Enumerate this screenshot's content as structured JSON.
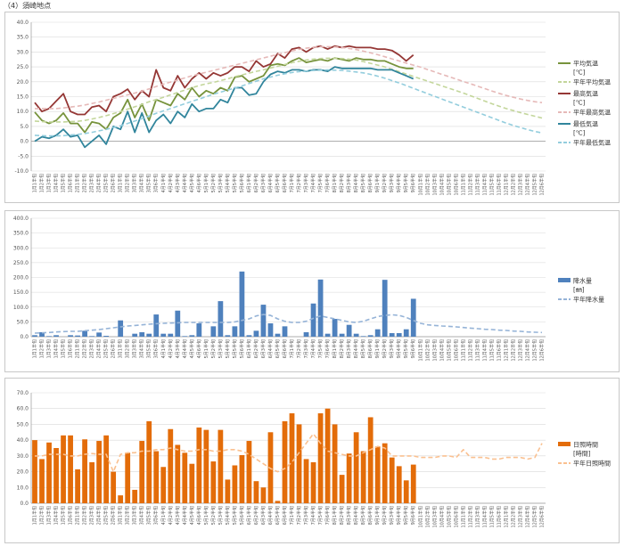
{
  "page": {
    "title": "（4）須崎地点"
  },
  "x_labels": [
    "1月1半旬",
    "1月2半旬",
    "1月3半旬",
    "1月4半旬",
    "1月5半旬",
    "1月6半旬",
    "2月1半旬",
    "2月2半旬",
    "2月3半旬",
    "2月4半旬",
    "2月5半旬",
    "2月6半旬",
    "3月1半旬",
    "3月2半旬",
    "3月3半旬",
    "3月4半旬",
    "3月5半旬",
    "3月6半旬",
    "4月1半旬",
    "4月2半旬",
    "4月3半旬",
    "4月4半旬",
    "4月5半旬",
    "4月6半旬",
    "5月1半旬",
    "5月2半旬",
    "5月3半旬",
    "5月4半旬",
    "5月5半旬",
    "5月6半旬",
    "6月1半旬",
    "6月2半旬",
    "6月3半旬",
    "6月4半旬",
    "6月5半旬",
    "6月6半旬",
    "7月1半旬",
    "7月2半旬",
    "7月3半旬",
    "7月4半旬",
    "7月5半旬",
    "7月6半旬",
    "8月1半旬",
    "8月2半旬",
    "8月3半旬",
    "8月4半旬",
    "8月5半旬",
    "8月6半旬",
    "9月1半旬",
    "9月2半旬",
    "9月3半旬",
    "9月4半旬",
    "9月5半旬",
    "9月6半旬",
    "10月1半旬",
    "10月2半旬",
    "10月3半旬",
    "10月4半旬",
    "10月5半旬",
    "10月6半旬",
    "11月1半旬",
    "11月2半旬",
    "11月3半旬",
    "11月4半旬",
    "11月5半旬",
    "11月6半旬",
    "12月1半旬",
    "12月2半旬",
    "12月3半旬",
    "12月4半旬",
    "12月5半旬",
    "12月6半旬"
  ],
  "colors": {
    "avg": "#77933c",
    "avg_normal": "#c3d69b",
    "max": "#953735",
    "max_normal": "#e6b9b8",
    "min": "#31859c",
    "min_normal": "#93cddd",
    "rain": "#4f81bd",
    "rain_normal": "#95b3d7",
    "sun": "#e36c09",
    "sun_normal": "#fac090",
    "grid": "#d9d9d9"
  },
  "chart_data": [
    {
      "type": "line",
      "ylim": [
        -10,
        40
      ],
      "yticks": [
        "-10.0",
        "-5.0",
        "0.0",
        "5.0",
        "10.0",
        "15.0",
        "20.0",
        "25.0",
        "30.0",
        "35.0",
        "40.0"
      ],
      "legend_position": "right",
      "series": [
        {
          "name": "平均気温",
          "unit": "[℃]",
          "style": "solid",
          "color_key": "avg",
          "values": [
            9.8,
            7,
            6,
            7,
            9.5,
            6,
            6,
            3,
            6.5,
            6,
            4,
            8,
            9.5,
            14,
            8,
            12.5,
            7,
            14,
            13,
            12,
            16,
            14,
            18,
            15,
            17,
            16,
            18,
            17,
            21.5,
            22,
            20,
            21,
            22,
            25.5,
            26,
            25.5,
            27,
            28,
            26.5,
            27,
            27.5,
            27,
            28,
            27.5,
            27,
            28,
            27.5,
            27.5,
            27,
            27,
            26,
            25,
            24.5,
            24.5
          ]
        },
        {
          "name": "平年平均気温",
          "style": "dashed",
          "color_key": "avg_normal",
          "values": [
            6.8,
            6.6,
            6.5,
            6.5,
            6.5,
            6.6,
            6.7,
            7,
            7.5,
            8,
            8.6,
            9.3,
            10,
            10.8,
            11.6,
            12.4,
            13.3,
            14,
            14.8,
            15.6,
            16.4,
            17.2,
            18,
            18.7,
            19.3,
            19.8,
            20.4,
            21,
            21.7,
            22.3,
            22.9,
            23.5,
            24,
            24.6,
            25.2,
            25.8,
            26.4,
            26.9,
            27.3,
            27.6,
            27.8,
            27.9,
            27.9,
            27.8,
            27.6,
            27.3,
            26.8,
            26.2,
            25.6,
            25,
            24.2,
            23.4,
            22.6,
            21.8,
            21,
            20.2,
            19.4,
            18.6,
            17.8,
            17,
            16.2,
            15.3,
            14.4,
            13.5,
            12.6,
            11.8,
            11,
            10.3,
            9.6,
            9,
            8.4,
            7.8
          ]
        },
        {
          "name": "最高気温",
          "unit": "",
          "style": "solid",
          "color_key": "max",
          "values": [
            13,
            10,
            11,
            13.5,
            16,
            10,
            9,
            9,
            11.5,
            12,
            10,
            15,
            16,
            17.5,
            14,
            17,
            15,
            24,
            18,
            17,
            22,
            18,
            21,
            23,
            21,
            23,
            22,
            23,
            25,
            25,
            23.5,
            27,
            25,
            26,
            29.5,
            28,
            31,
            31.5,
            30,
            31.5,
            32,
            31,
            32,
            31.5,
            32,
            31.5,
            31.5,
            31.5,
            31,
            31,
            30.5,
            29,
            27,
            29
          ]
        },
        {
          "name": "平年最高気温",
          "style": "dashed",
          "color_key": "max_normal",
          "values": [
            11,
            11,
            11,
            11,
            11.2,
            11.5,
            11.8,
            12.2,
            12.7,
            13.2,
            13.8,
            14.4,
            15,
            15.6,
            16.2,
            16.9,
            17.6,
            18.4,
            19.2,
            19.9,
            20.6,
            21.3,
            22,
            22.6,
            23.2,
            23.8,
            24.4,
            25,
            25.6,
            26.2,
            26.8,
            27.4,
            28,
            28.6,
            29.2,
            29.8,
            30.4,
            30.9,
            31.3,
            31.6,
            31.8,
            31.8,
            31.7,
            31.5,
            31.2,
            30.8,
            30.3,
            29.7,
            29.1,
            28.4,
            27.7,
            27,
            26.3,
            25.6,
            24.9,
            24.1,
            23.3,
            22.5,
            21.7,
            20.9,
            20.1,
            19.3,
            18.5,
            17.7,
            16.9,
            16.1,
            15.4,
            14.8,
            14.2,
            13.7,
            13.3,
            13
          ]
        },
        {
          "name": "最低気温",
          "unit": "[℃]",
          "style": "solid",
          "color_key": "min",
          "values": [
            0,
            1.5,
            1,
            2,
            4,
            1.5,
            2,
            -2,
            0,
            2,
            -1,
            5,
            4,
            10,
            3,
            9.5,
            3,
            7,
            9,
            6,
            10,
            8,
            12.5,
            10,
            11,
            11,
            14,
            13,
            18,
            18,
            15.5,
            16,
            20,
            22.5,
            23.5,
            23,
            24,
            24,
            23.5,
            24,
            24,
            23.5,
            25,
            24.5,
            24.5,
            24.5,
            24.5,
            24.5,
            24,
            24,
            24,
            23,
            22,
            21
          ]
        },
        {
          "name": "平年最低気温",
          "style": "dashed",
          "color_key": "min_normal",
          "values": [
            2,
            1.9,
            1.8,
            1.8,
            1.9,
            2.1,
            2.3,
            2.6,
            3,
            3.5,
            4,
            4.6,
            5.2,
            6,
            6.8,
            7.6,
            8.5,
            9.4,
            10.2,
            11,
            11.8,
            12.6,
            13.4,
            14.2,
            15,
            15.8,
            16.5,
            17.2,
            17.9,
            18.6,
            19.4,
            20.2,
            21,
            21.6,
            22.2,
            22.7,
            23.1,
            23.4,
            23.6,
            23.8,
            23.9,
            24,
            23.9,
            23.8,
            23.6,
            23.3,
            23,
            22.5,
            21.9,
            21.2,
            20.4,
            19.6,
            18.7,
            17.8,
            16.9,
            16,
            15.1,
            14.2,
            13.3,
            12.4,
            11.5,
            10.6,
            9.7,
            8.8,
            7.9,
            7,
            6.1,
            5.3,
            4.6,
            3.9,
            3.3,
            2.8
          ]
        }
      ],
      "legend": [
        {
          "label": "平均気温",
          "sub": "[℃]",
          "color_key": "avg",
          "style": "solid"
        },
        {
          "label": "平年平均気温",
          "color_key": "avg_normal",
          "style": "dashed"
        },
        {
          "label": "最高気温",
          "sub": "[℃]",
          "color_key": "max",
          "style": "solid"
        },
        {
          "label": "平年最高気温",
          "color_key": "max_normal",
          "style": "dashed"
        },
        {
          "label": "最低気温",
          "sub": "[℃]",
          "color_key": "min",
          "style": "solid"
        },
        {
          "label": "平年最低気温",
          "color_key": "min_normal",
          "style": "dashed"
        }
      ]
    },
    {
      "type": "bar",
      "ylim": [
        0,
        400
      ],
      "yticks": [
        "0.0",
        "50.0",
        "100.0",
        "150.0",
        "200.0",
        "250.0",
        "300.0",
        "350.0",
        "400.0"
      ],
      "legend_position": "right",
      "bars": {
        "name": "降水量",
        "unit": "[㎜]",
        "color_key": "rain",
        "values": [
          5,
          15,
          2,
          5,
          0,
          5,
          4,
          20,
          2,
          14,
          3,
          0,
          55,
          0,
          10,
          15,
          10,
          75,
          10,
          10,
          88,
          2,
          5,
          45,
          0,
          35,
          120,
          5,
          35,
          220,
          5,
          20,
          108,
          45,
          10,
          35,
          0,
          0,
          15,
          112,
          193,
          10,
          60,
          10,
          40,
          10,
          2,
          5,
          25,
          192,
          12,
          12,
          25,
          128
        ]
      },
      "normal": {
        "name": "平年降水量",
        "style": "dashed",
        "color_key": "rain_normal",
        "values": [
          12,
          13,
          14,
          16,
          17,
          18,
          18,
          20,
          22,
          24,
          27,
          30,
          33,
          36,
          38,
          40,
          42,
          44,
          45,
          46,
          47,
          48,
          48,
          48,
          48,
          48,
          48,
          48,
          50,
          55,
          60,
          70,
          75,
          72,
          60,
          52,
          48,
          48,
          52,
          62,
          70,
          65,
          60,
          55,
          50,
          48,
          52,
          60,
          68,
          72,
          74,
          72,
          65,
          55,
          45,
          40,
          38,
          36,
          35,
          33,
          31,
          29,
          27,
          25,
          24,
          22,
          21,
          19,
          18,
          16,
          15,
          14
        ]
      },
      "legend": [
        {
          "label": "降水量",
          "sub": "[㎜]",
          "color_key": "rain",
          "style": "bar"
        },
        {
          "label": "平年降水量",
          "color_key": "rain_normal",
          "style": "dashed"
        }
      ]
    },
    {
      "type": "bar",
      "ylim": [
        0,
        70
      ],
      "yticks": [
        "0.0",
        "10.0",
        "20.0",
        "30.0",
        "40.0",
        "50.0",
        "60.0",
        "70.0"
      ],
      "legend_position": "right",
      "bars": {
        "name": "日照時間",
        "unit": "[時間]",
        "color_key": "sun",
        "values": [
          40,
          28,
          38.5,
          35,
          43,
          43,
          21.5,
          40.5,
          26,
          39.5,
          43,
          20,
          5,
          32,
          8.5,
          39.5,
          52,
          33,
          23,
          47,
          37,
          32,
          25,
          48,
          46.5,
          26.5,
          46.5,
          15,
          24,
          30.5,
          39.5,
          14,
          10,
          45,
          1.5,
          52,
          57,
          50,
          28,
          26,
          57,
          60,
          50,
          18,
          31.5,
          45,
          33,
          54.5,
          36,
          38,
          29,
          23.5,
          14.5,
          24.5
        ]
      },
      "normal": {
        "name": "平年日照時間",
        "style": "dashed",
        "color_key": "sun_normal",
        "values": [
          30,
          30,
          31,
          31,
          31,
          30,
          30,
          31,
          31.5,
          31,
          31,
          20,
          31,
          32,
          32,
          33,
          33,
          34,
          34,
          35,
          34,
          33,
          33,
          34,
          34,
          33,
          33,
          34,
          34,
          33,
          31,
          28,
          25,
          22,
          20,
          22,
          26,
          32,
          38,
          44,
          38,
          33,
          32,
          31,
          30,
          30,
          32,
          34,
          36,
          35,
          30,
          30,
          30,
          30,
          29,
          29,
          29,
          30,
          30,
          29,
          34,
          29,
          29,
          29,
          28,
          28,
          29,
          29,
          29,
          28,
          29,
          38
        ]
      },
      "legend": [
        {
          "label": "日照時間",
          "sub": "[時間]",
          "color_key": "sun",
          "style": "bar"
        },
        {
          "label": "平年日照時間",
          "color_key": "sun_normal",
          "style": "dashed"
        }
      ]
    }
  ]
}
